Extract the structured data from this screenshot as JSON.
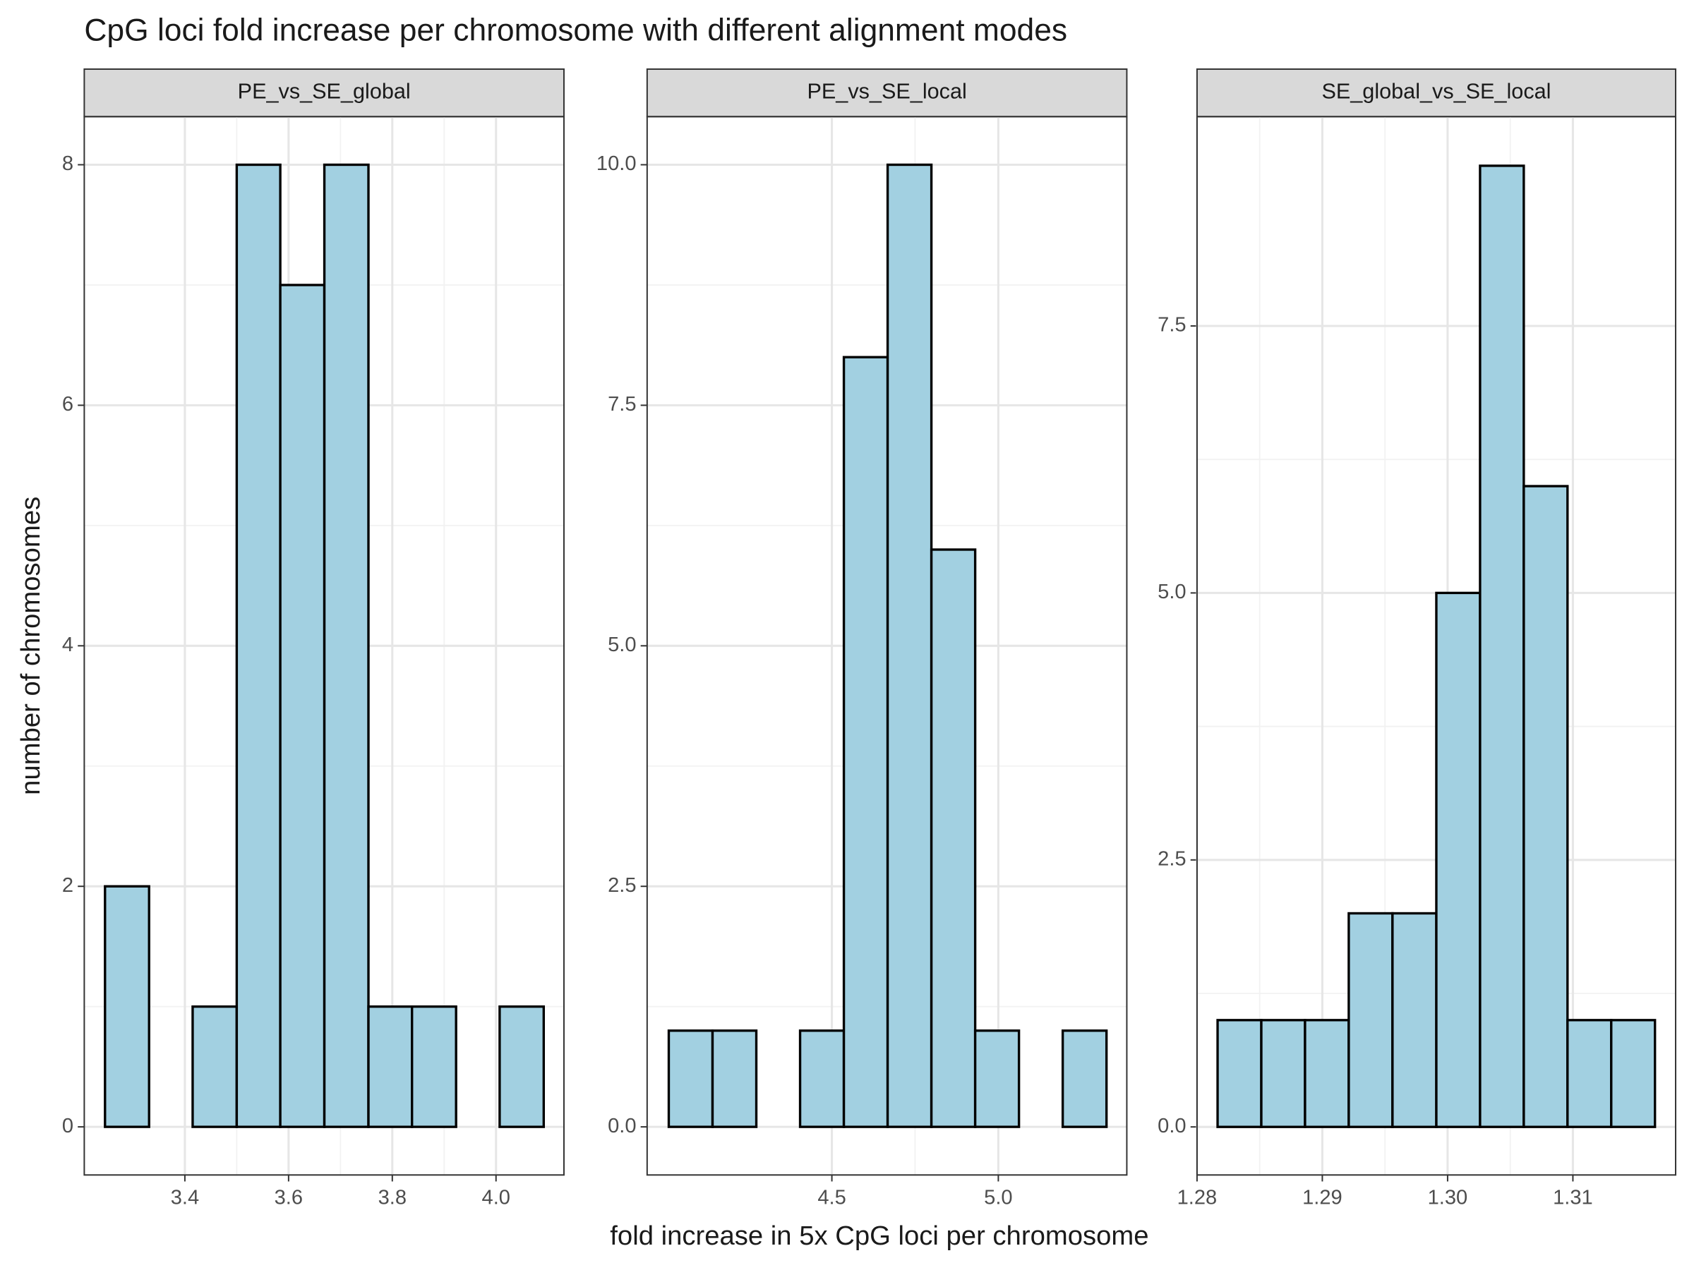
{
  "title": "CpG loci fold increase per chromosome with different alignment modes",
  "x_label": "fold increase in 5x CpG loci per chromosome",
  "y_label": "number of chromosomes",
  "chart_data": [
    {
      "type": "histogram",
      "facet": "PE_vs_SE_global",
      "color": "#a2d0e1",
      "edgecolor": "#000000",
      "bins": [
        3.246,
        3.331,
        3.415,
        3.5,
        3.584,
        3.669,
        3.754,
        3.838,
        3.923,
        4.007,
        4.092
      ],
      "counts": [
        2,
        0,
        1,
        8,
        7,
        8,
        1,
        1,
        0,
        1
      ],
      "xlim": [
        3.206,
        4.131
      ],
      "xticks": [
        3.4,
        3.6,
        3.8,
        {
          "value": 4.0,
          "label": "4.0"
        }
      ],
      "ylim": [
        -0.4,
        8.4
      ],
      "yticks": [
        0,
        2,
        4,
        6,
        8
      ],
      "grid": true
    },
    {
      "type": "histogram",
      "facet": "PE_vs_SE_local",
      "color": "#a2d0e1",
      "edgecolor": "#000000",
      "bins": [
        4.01,
        4.1415,
        4.273,
        4.4045,
        4.536,
        4.6675,
        4.799,
        4.9305,
        5.062,
        5.1935,
        5.325
      ],
      "counts": [
        1,
        1,
        0,
        1,
        8,
        10,
        6,
        1,
        0,
        1
      ],
      "xlim": [
        3.945,
        5.386
      ],
      "xticks": [
        4.5,
        {
          "value": 5.0,
          "label": "5.0"
        }
      ],
      "ylim": [
        -0.5,
        10.5
      ],
      "yticks": [
        {
          "value": 0,
          "label": "0.0"
        },
        2.5,
        {
          "value": 5,
          "label": "5.0"
        },
        7.5,
        {
          "value": 10,
          "label": "10.0"
        }
      ],
      "grid": true
    },
    {
      "type": "histogram",
      "facet": "SE_global_vs_SE_local",
      "color": "#a2d0e1",
      "edgecolor": "#000000",
      "bins": [
        1.28164,
        1.28513,
        1.28862,
        1.29211,
        1.2956,
        1.2991,
        1.30259,
        1.30608,
        1.30957,
        1.31306,
        1.31655
      ],
      "counts": [
        1,
        1,
        1,
        2,
        2,
        5,
        9,
        6,
        1,
        1
      ],
      "xlim": [
        1.28,
        1.3182
      ],
      "xticks": [
        1.28,
        1.29,
        {
          "value": 1.3,
          "label": "1.30"
        },
        1.31
      ],
      "ylim": [
        -0.45,
        9.46
      ],
      "yticks": [
        {
          "value": 0,
          "label": "0.0"
        },
        2.5,
        {
          "value": 5,
          "label": "5.0"
        },
        7.5
      ],
      "grid": true
    }
  ]
}
